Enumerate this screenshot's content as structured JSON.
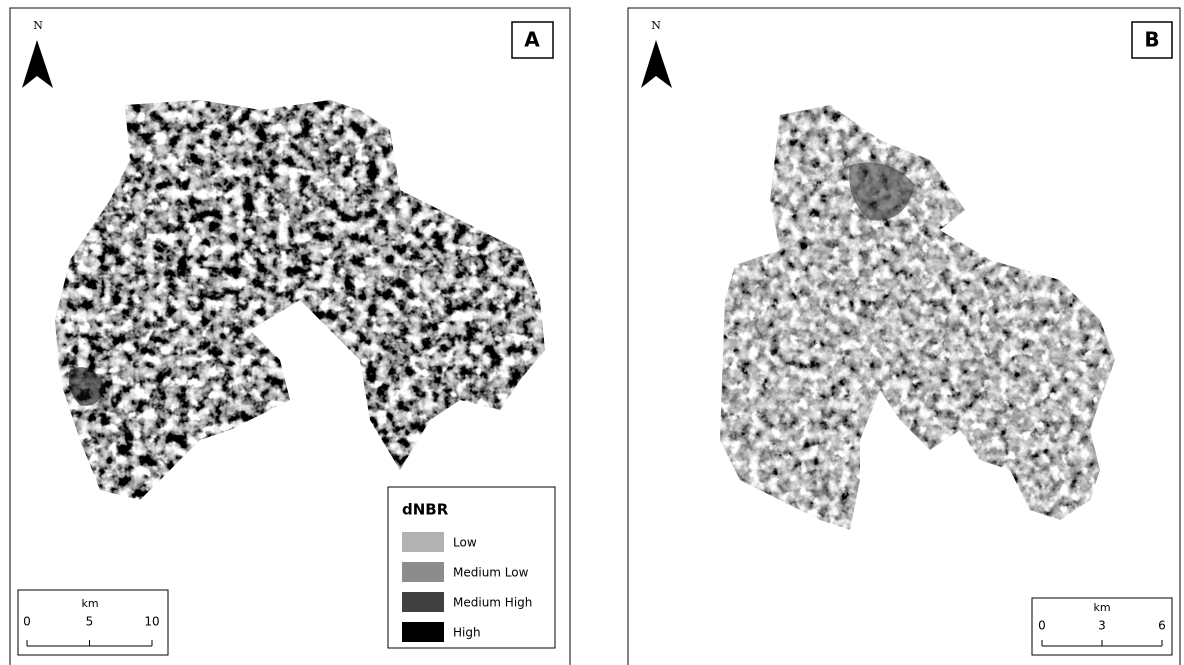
{
  "panels": [
    {
      "label": "A",
      "north": "N",
      "scale_bar": {
        "unit": "km",
        "ticks": [
          0,
          5,
          10
        ]
      },
      "legend": {
        "title": "dNBR",
        "items": [
          {
            "label": "Low",
            "color": "#b2b2b2"
          },
          {
            "label": "Medium Low",
            "color": "#8c8c8c"
          },
          {
            "label": "Medium High",
            "color": "#404040"
          },
          {
            "label": "High",
            "color": "#000000"
          }
        ]
      }
    },
    {
      "label": "B",
      "north": "N",
      "scale_bar": {
        "unit": "km",
        "ticks": [
          0,
          3,
          6
        ]
      }
    }
  ]
}
